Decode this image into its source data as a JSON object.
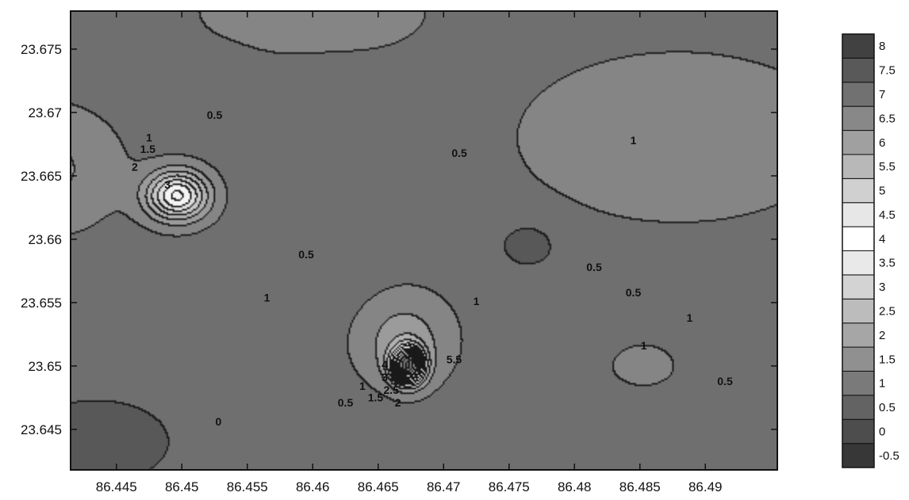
{
  "chart_data": {
    "type": "contour",
    "title": "",
    "xlabel": "",
    "ylabel": "",
    "xlim": [
      86.4415,
      86.4955
    ],
    "ylim": [
      23.6418,
      23.678
    ],
    "x_ticks": [
      86.445,
      86.45,
      86.455,
      86.46,
      86.465,
      86.47,
      86.475,
      86.48,
      86.485,
      86.49
    ],
    "x_tick_labels": [
      "86.445",
      "86.45",
      "86.455",
      "86.46",
      "86.465",
      "86.47",
      "86.475",
      "86.48",
      "86.485",
      "86.49"
    ],
    "y_ticks": [
      23.645,
      23.65,
      23.655,
      23.66,
      23.665,
      23.67,
      23.675
    ],
    "y_tick_labels": [
      "23.645",
      "23.65",
      "23.655",
      "23.66",
      "23.665",
      "23.67",
      "23.675"
    ],
    "colorbar": {
      "levels": [
        -0.5,
        0,
        0.5,
        1,
        1.5,
        2,
        2.5,
        3,
        3.5,
        4,
        4.5,
        5,
        5.5,
        6,
        6.5,
        7,
        7.5,
        8
      ],
      "labels": [
        "8",
        "7.5",
        "7",
        "6.5",
        "6",
        "5.5",
        "5",
        "4.5",
        "4",
        "3.5",
        "3",
        "2.5",
        "2",
        "1.5",
        "1",
        "0.5",
        "0",
        "-0.5"
      ],
      "colormap": "grayscale; low values dark, mid values (about 3.5–4.5) white, high values dark"
    },
    "features": [
      {
        "kind": "peak",
        "x": 86.4497,
        "y": 23.6634,
        "value": 3
      },
      {
        "kind": "peak",
        "x": 86.4673,
        "y": 23.65,
        "value": 5.5
      },
      {
        "kind": "high",
        "x": 86.4853,
        "y": 23.65,
        "value": 1
      },
      {
        "kind": "low",
        "x": 86.4765,
        "y": 23.6595,
        "value": 0.5
      },
      {
        "kind": "low",
        "x": 86.4525,
        "y": 23.6725,
        "value": 0.5
      },
      {
        "kind": "low",
        "x": 86.4435,
        "y": 23.6445,
        "value": 0
      },
      {
        "kind": "high",
        "x": 86.4955,
        "y": 23.6522,
        "value": 1.5
      }
    ],
    "contour_labels": [
      {
        "text": "0.5",
        "x": 86.4525,
        "y": 23.6695
      },
      {
        "text": "1",
        "x": 86.4475,
        "y": 23.6677
      },
      {
        "text": "1.5",
        "x": 86.4474,
        "y": 23.6668
      },
      {
        "text": "2",
        "x": 86.4464,
        "y": 23.6654
      },
      {
        "text": "3",
        "x": 86.4489,
        "y": 23.664
      },
      {
        "text": "0.5",
        "x": 86.4712,
        "y": 23.6665
      },
      {
        "text": "0.5",
        "x": 86.4595,
        "y": 23.6585
      },
      {
        "text": "1",
        "x": 86.4565,
        "y": 23.6551
      },
      {
        "text": "1",
        "x": 86.4845,
        "y": 23.6675
      },
      {
        "text": "0.5",
        "x": 86.4815,
        "y": 23.6575
      },
      {
        "text": "0.5",
        "x": 86.4845,
        "y": 23.6555
      },
      {
        "text": "1",
        "x": 86.4888,
        "y": 23.6535
      },
      {
        "text": "1",
        "x": 86.4725,
        "y": 23.6548
      },
      {
        "text": "1",
        "x": 86.4853,
        "y": 23.6513
      },
      {
        "text": "0.5",
        "x": 86.4915,
        "y": 23.6485
      },
      {
        "text": "0",
        "x": 86.4528,
        "y": 23.6453
      },
      {
        "text": "0.5",
        "x": 86.4625,
        "y": 23.6468
      },
      {
        "text": "1",
        "x": 86.4638,
        "y": 23.6481
      },
      {
        "text": "1.5",
        "x": 86.4648,
        "y": 23.6472
      },
      {
        "text": "2",
        "x": 86.4665,
        "y": 23.6468
      },
      {
        "text": "2.5",
        "x": 86.466,
        "y": 23.6478
      },
      {
        "text": "3",
        "x": 86.4655,
        "y": 23.6488
      },
      {
        "text": "4",
        "x": 86.4655,
        "y": 23.6498
      },
      {
        "text": "5.5",
        "x": 86.4708,
        "y": 23.6502
      }
    ]
  }
}
